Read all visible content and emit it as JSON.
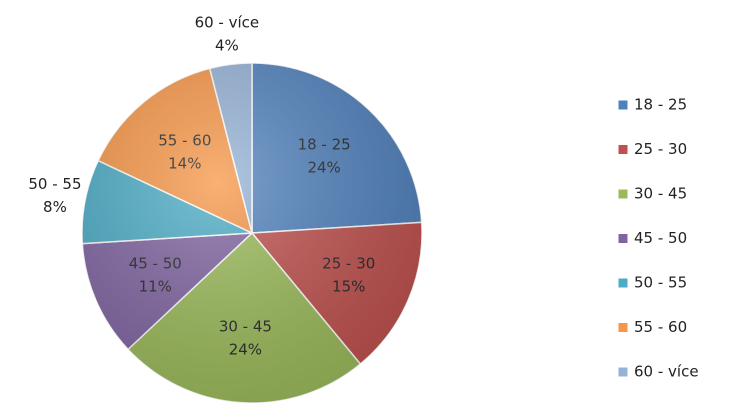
{
  "chart_data": {
    "type": "pie",
    "categories": [
      "18 - 25",
      "25 - 30",
      "30 - 45",
      "45 - 50",
      "50 - 55",
      "55 - 60",
      "60 - více"
    ],
    "values": [
      24,
      15,
      24,
      11,
      8,
      14,
      4
    ],
    "value_labels": [
      "24%",
      "15%",
      "24%",
      "11%",
      "8%",
      "14%",
      "4%"
    ],
    "colors": [
      "#4f81bd",
      "#c0504d",
      "#9bbb59",
      "#8064a2",
      "#4bacc6",
      "#f79646",
      "#95b3d7"
    ],
    "legend": "right"
  }
}
